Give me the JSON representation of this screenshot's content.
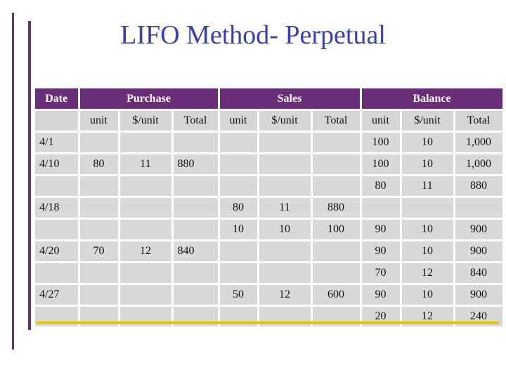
{
  "title": "LIFO Method- Perpetual",
  "header": {
    "date": "Date",
    "purchase": "Purchase",
    "sales": "Sales",
    "balance": "Balance"
  },
  "subheader": [
    "unit",
    "$/unit",
    "Total",
    "unit",
    "$/unit",
    "Total",
    "unit",
    "$/unit",
    "Total"
  ],
  "rows": [
    [
      "4/1",
      "",
      "",
      "",
      "",
      "",
      "",
      "100",
      "10",
      "1,000"
    ],
    [
      "4/10",
      "80",
      "11",
      "880",
      "",
      "",
      "",
      "100",
      "10",
      "1,000"
    ],
    [
      "",
      "",
      "",
      "",
      "",
      "",
      "",
      "80",
      "11",
      "880"
    ],
    [
      "4/18",
      "",
      "",
      "",
      "80",
      "11",
      "880",
      "",
      "",
      ""
    ],
    [
      "",
      "",
      "",
      "",
      "10",
      "10",
      "100",
      "90",
      "10",
      "900"
    ],
    [
      "4/20",
      "70",
      "12",
      "840",
      "",
      "",
      "",
      "90",
      "10",
      "900"
    ],
    [
      "",
      "",
      "",
      "",
      "",
      "",
      "",
      "70",
      "12",
      "840"
    ],
    [
      "4/27",
      "",
      "",
      "",
      "50",
      "12",
      "600",
      "90",
      "10",
      "900"
    ],
    [
      "",
      "",
      "",
      "",
      "",
      "",
      "",
      "20",
      "12",
      "240"
    ]
  ],
  "colors": {
    "header": "#6a2d78",
    "cell": "#d9d9d9",
    "accent_line": "#e8c400",
    "title": "#3b3faa"
  }
}
